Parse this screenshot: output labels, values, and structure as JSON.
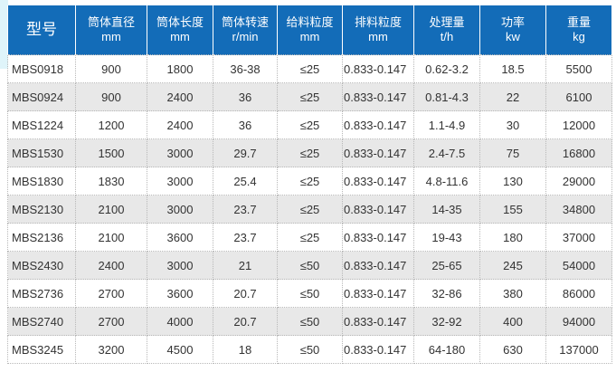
{
  "headers": [
    {
      "title": "型号",
      "unit": ""
    },
    {
      "title": "筒体直径",
      "unit": "mm"
    },
    {
      "title": "筒体长度",
      "unit": "mm"
    },
    {
      "title": "筒体转速",
      "unit": "r/min"
    },
    {
      "title": "给料粒度",
      "unit": "mm"
    },
    {
      "title": "排料粒度",
      "unit": "mm"
    },
    {
      "title": "处理量",
      "unit": "t/h"
    },
    {
      "title": "功率",
      "unit": "kw"
    },
    {
      "title": "重量",
      "unit": "kg"
    }
  ],
  "rows": [
    [
      "MBS0918",
      "900",
      "1800",
      "36-38",
      "≤25",
      "0.833-0.147",
      "0.62-3.2",
      "18.5",
      "5500"
    ],
    [
      "MBS0924",
      "900",
      "2400",
      "36",
      "≤25",
      "0.833-0.147",
      "0.81-4.3",
      "22",
      "6100"
    ],
    [
      "MBS1224",
      "1200",
      "2400",
      "36",
      "≤25",
      "0.833-0.147",
      "1.1-4.9",
      "30",
      "12000"
    ],
    [
      "MBS1530",
      "1500",
      "3000",
      "29.7",
      "≤25",
      "0.833-0.147",
      "2.4-7.5",
      "75",
      "16800"
    ],
    [
      "MBS1830",
      "1830",
      "3000",
      "25.4",
      "≤25",
      "0.833-0.147",
      "4.8-11.6",
      "130",
      "29000"
    ],
    [
      "MBS2130",
      "2100",
      "3000",
      "23.7",
      "≤25",
      "0.833-0.147",
      "14-35",
      "155",
      "34800"
    ],
    [
      "MBS2136",
      "2100",
      "3600",
      "23.7",
      "≤25",
      "0.833-0.147",
      "19-43",
      "180",
      "37000"
    ],
    [
      "MBS2430",
      "2400",
      "3000",
      "21",
      "≤50",
      "0.833-0.147",
      "25-65",
      "245",
      "54000"
    ],
    [
      "MBS2736",
      "2700",
      "3600",
      "20.7",
      "≤50",
      "0.833-0.147",
      "32-86",
      "380",
      "86000"
    ],
    [
      "MBS2740",
      "2700",
      "4000",
      "20.7",
      "≤50",
      "0.833-0.147",
      "32-92",
      "400",
      "94000"
    ],
    [
      "MBS3245",
      "3200",
      "4500",
      "18",
      "≤50",
      "0.833-0.147",
      "64-180",
      "630",
      "137000"
    ]
  ],
  "colors": {
    "header_bg": "#136cb8",
    "alt_row": "#e8e8e8"
  }
}
